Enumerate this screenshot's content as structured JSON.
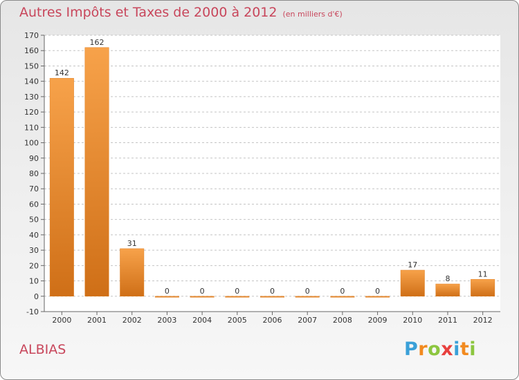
{
  "chart_data": {
    "type": "bar",
    "title": "Autres Impôts et Taxes de 2000 à 2012",
    "subtitle": "(en milliers d'€)",
    "categories": [
      "2000",
      "2001",
      "2002",
      "2003",
      "2004",
      "2005",
      "2006",
      "2007",
      "2008",
      "2009",
      "2010",
      "2011",
      "2012"
    ],
    "values": [
      142,
      162,
      31,
      0,
      0,
      0,
      0,
      0,
      0,
      0,
      17,
      8,
      11
    ],
    "ylim": [
      -10,
      170
    ],
    "yticks": [
      -10,
      0,
      10,
      20,
      30,
      40,
      50,
      60,
      70,
      80,
      90,
      100,
      110,
      120,
      130,
      140,
      150,
      160,
      170
    ],
    "grid": true,
    "bar_color": "#f0922e"
  },
  "footer": {
    "commune": "ALBIAS",
    "brand_letters": [
      "P",
      "r",
      "o",
      "x",
      "i",
      "t",
      "i"
    ],
    "brand_colors": [
      "#3aa0d8",
      "#f28a1f",
      "#8cc63f",
      "#e8403e",
      "#3aa0d8",
      "#f28a1f",
      "#8cc63f"
    ]
  }
}
